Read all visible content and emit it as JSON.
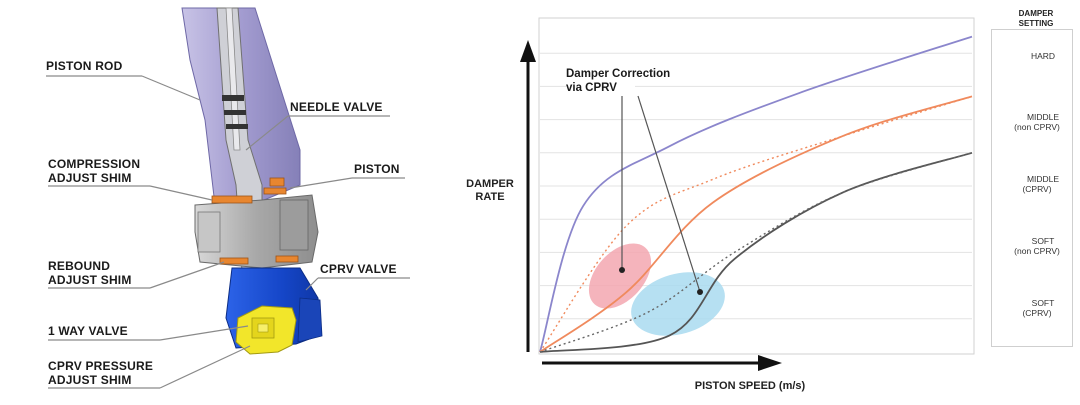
{
  "diagram": {
    "callouts": {
      "piston_rod": "PISTON ROD",
      "needle_valve": "NEEDLE VALVE",
      "compression_adjust_shim_1": "COMPRESSION",
      "compression_adjust_shim_2": "ADJUST SHIM",
      "piston": "PISTON",
      "rebound_adjust_shim_1": "REBOUND",
      "rebound_adjust_shim_2": "ADJUST SHIM",
      "cprv_valve": "CPRV VALVE",
      "one_way_valve": "1 WAY VALVE",
      "cprv_pressure_adjust_shim_1": "CPRV PRESSURE",
      "cprv_pressure_adjust_shim_2": "ADJUST SHIM"
    },
    "colors": {
      "rod": "#a9a2d3",
      "shims": "#e8862f",
      "piston": "#b8b8b8",
      "cprv_valve": "#1a4fd6",
      "cprv_shim": "#f2e62a"
    }
  },
  "chart_data": {
    "type": "line",
    "xlabel": "PISTON SPEED (m/s)",
    "ylabel_line1": "DAMPER",
    "ylabel_line2": "RATE",
    "annotation_line1": "Damper Correction",
    "annotation_line2": "via CPRV",
    "legend_title_line1": "DAMPER",
    "legend_title_line2": "SETTING",
    "grid": true,
    "series": [
      {
        "name": "HARD",
        "legend_line1": "HARD",
        "legend_line2": "",
        "color": "#8b86cc",
        "style": "solid",
        "x": [
          0,
          0.1,
          0.3,
          0.6,
          1.0
        ],
        "y": [
          0,
          0.44,
          0.62,
          0.78,
          0.95
        ]
      },
      {
        "name": "MIDDLE (non CPRV)",
        "legend_line1": "MIDDLE",
        "legend_line2": "(non CPRV)",
        "color": "#f08a5d",
        "style": "solid",
        "x": [
          0,
          0.2,
          0.4,
          0.7,
          1.0
        ],
        "y": [
          0,
          0.18,
          0.45,
          0.65,
          0.77
        ]
      },
      {
        "name": "MIDDLE (CPRV)",
        "legend_line1": "MIDDLE",
        "legend_line2": "(CPRV)",
        "color": "#f08a5d",
        "style": "dotted",
        "x": [
          0,
          0.2,
          0.4,
          0.7,
          1.0
        ],
        "y": [
          0,
          0.38,
          0.52,
          0.65,
          0.77
        ]
      },
      {
        "name": "SOFT (non CPRV)",
        "legend_line1": "SOFT",
        "legend_line2": "(non CPRV)",
        "color": "#555555",
        "style": "solid",
        "x": [
          0,
          0.3,
          0.45,
          0.7,
          1.0
        ],
        "y": [
          0,
          0.05,
          0.28,
          0.48,
          0.6
        ]
      },
      {
        "name": "SOFT (CPRV)",
        "legend_line1": "SOFT",
        "legend_line2": "(CPRV)",
        "color": "#666666",
        "style": "dotted",
        "x": [
          0,
          0.25,
          0.45,
          0.7,
          1.0
        ],
        "y": [
          0,
          0.12,
          0.3,
          0.48,
          0.6
        ]
      }
    ],
    "highlight_regions": [
      {
        "name": "correction-middle",
        "color": "#f3a7b0"
      },
      {
        "name": "correction-soft",
        "color": "#a9dbf0"
      }
    ]
  }
}
